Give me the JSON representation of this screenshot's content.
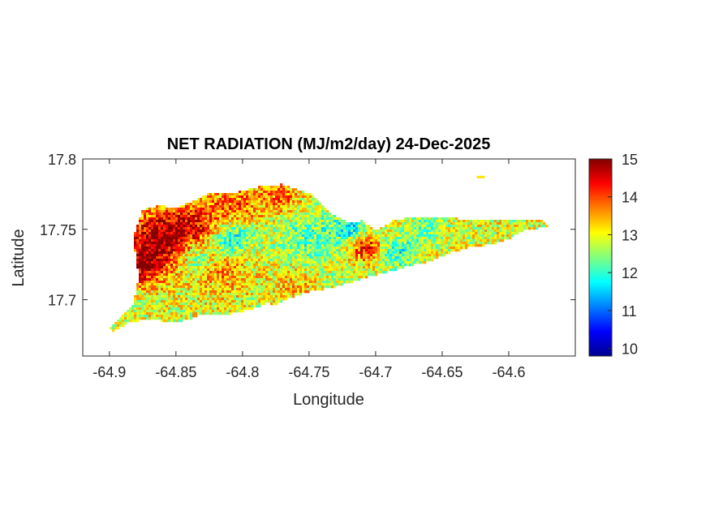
{
  "chart_data": {
    "type": "heatmap",
    "title": "NET RADIATION (MJ/m2/day) 24-Dec-2025",
    "xlabel": "Longitude",
    "ylabel": "Latitude",
    "xlim": [
      -64.92,
      -64.55
    ],
    "ylim": [
      17.66,
      17.8
    ],
    "x_ticks": [
      -64.9,
      -64.85,
      -64.8,
      -64.75,
      -64.7,
      -64.65,
      -64.6
    ],
    "x_tick_labels": [
      "-64.9",
      "-64.85",
      "-64.8",
      "-64.75",
      "-64.7",
      "-64.65",
      "-64.6"
    ],
    "y_ticks": [
      17.7,
      17.75,
      17.8
    ],
    "y_tick_labels": [
      "17.7",
      "17.75",
      "17.8"
    ],
    "colormap": "jet",
    "colorbar": {
      "range": [
        9.8,
        15
      ],
      "ticks": [
        10,
        11,
        12,
        13,
        14,
        15
      ],
      "tick_labels": [
        "10",
        "11",
        "12",
        "13",
        "14",
        "15"
      ]
    },
    "grid": false,
    "island_outline": [
      [
        -64.9,
        17.68
      ],
      [
        -64.892,
        17.687
      ],
      [
        -64.882,
        17.697
      ],
      [
        -64.878,
        17.715
      ],
      [
        -64.882,
        17.745
      ],
      [
        -64.875,
        17.764
      ],
      [
        -64.862,
        17.767
      ],
      [
        -64.85,
        17.765
      ],
      [
        -64.838,
        17.77
      ],
      [
        -64.825,
        17.776
      ],
      [
        -64.805,
        17.776
      ],
      [
        -64.79,
        17.78
      ],
      [
        -64.77,
        17.782
      ],
      [
        -64.748,
        17.775
      ],
      [
        -64.735,
        17.762
      ],
      [
        -64.72,
        17.755
      ],
      [
        -64.71,
        17.756
      ],
      [
        -64.7,
        17.749
      ],
      [
        -64.685,
        17.757
      ],
      [
        -64.665,
        17.759
      ],
      [
        -64.645,
        17.758
      ],
      [
        -64.625,
        17.757
      ],
      [
        -64.608,
        17.756
      ],
      [
        -64.59,
        17.757
      ],
      [
        -64.575,
        17.756
      ],
      [
        -64.57,
        17.752
      ],
      [
        -64.59,
        17.749
      ],
      [
        -64.6,
        17.743
      ],
      [
        -64.615,
        17.739
      ],
      [
        -64.63,
        17.737
      ],
      [
        -64.645,
        17.733
      ],
      [
        -64.66,
        17.727
      ],
      [
        -64.675,
        17.724
      ],
      [
        -64.69,
        17.72
      ],
      [
        -64.703,
        17.717
      ],
      [
        -64.72,
        17.712
      ],
      [
        -64.735,
        17.708
      ],
      [
        -64.75,
        17.706
      ],
      [
        -64.762,
        17.702
      ],
      [
        -64.77,
        17.699
      ],
      [
        -64.775,
        17.696
      ],
      [
        -64.781,
        17.698
      ],
      [
        -64.79,
        17.694
      ],
      [
        -64.81,
        17.69
      ],
      [
        -64.83,
        17.69
      ],
      [
        -64.84,
        17.686
      ],
      [
        -64.85,
        17.684
      ],
      [
        -64.87,
        17.686
      ],
      [
        -64.885,
        17.684
      ],
      [
        -64.897,
        17.678
      ]
    ],
    "islet_outline": [
      [
        -64.624,
        17.788
      ],
      [
        -64.618,
        17.788
      ],
      [
        -64.618,
        17.787
      ],
      [
        -64.624,
        17.787
      ]
    ],
    "value_field": {
      "background": 12.9,
      "hotspots": [
        {
          "lon": -64.862,
          "lat": 17.743,
          "value": 14.8,
          "radius": 0.018
        },
        {
          "lon": -64.878,
          "lat": 17.722,
          "value": 14.2,
          "radius": 0.012
        },
        {
          "lon": -64.835,
          "lat": 17.755,
          "value": 13.9,
          "radius": 0.014
        },
        {
          "lon": -64.805,
          "lat": 17.768,
          "value": 13.8,
          "radius": 0.013
        },
        {
          "lon": -64.77,
          "lat": 17.772,
          "value": 13.8,
          "radius": 0.012
        },
        {
          "lon": -64.708,
          "lat": 17.737,
          "value": 14.5,
          "radius": 0.008
        },
        {
          "lon": -64.815,
          "lat": 17.722,
          "value": 13.6,
          "radius": 0.016
        },
        {
          "lon": -64.76,
          "lat": 17.712,
          "value": 13.4,
          "radius": 0.012
        }
      ],
      "coldspots": [
        {
          "lon": -64.808,
          "lat": 17.743,
          "value": 11.6,
          "radius": 0.01
        },
        {
          "lon": -64.835,
          "lat": 17.73,
          "value": 11.9,
          "radius": 0.01
        },
        {
          "lon": -64.75,
          "lat": 17.745,
          "value": 12.2,
          "radius": 0.02
        },
        {
          "lon": -64.718,
          "lat": 17.75,
          "value": 11.8,
          "radius": 0.008
        },
        {
          "lon": -64.682,
          "lat": 17.733,
          "value": 12.0,
          "radius": 0.01
        },
        {
          "lon": -64.66,
          "lat": 17.752,
          "value": 12.3,
          "radius": 0.01
        },
        {
          "lon": -64.89,
          "lat": 17.7,
          "value": 12.3,
          "radius": 0.008
        }
      ]
    }
  }
}
